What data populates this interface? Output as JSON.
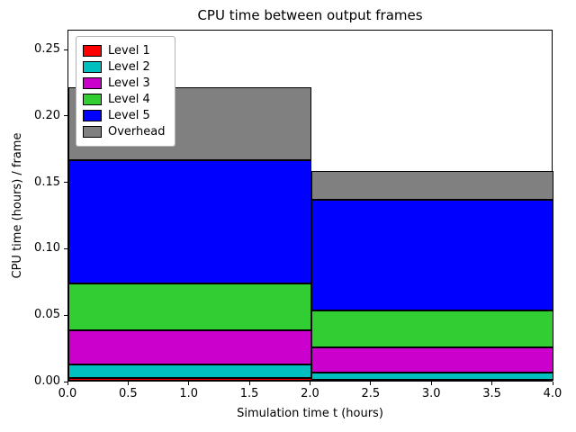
{
  "chart_data": {
    "type": "bar",
    "stacked": true,
    "title": "CPU time between output frames",
    "xlabel": "Simulation time t (hours)",
    "ylabel": "CPU time (hours) / frame",
    "xlim": [
      0,
      4
    ],
    "ylim": [
      0,
      0.265
    ],
    "xtick_labels": [
      "0.0",
      "0.5",
      "1.0",
      "1.5",
      "2.0",
      "2.5",
      "3.0",
      "3.5",
      "4.0"
    ],
    "ytick_labels": [
      "0.00",
      "0.05",
      "0.10",
      "0.15",
      "0.20",
      "0.25"
    ],
    "grid": false,
    "bar_edge_color": "#000000",
    "bars": [
      {
        "x_start": 0,
        "x_end": 2
      },
      {
        "x_start": 2,
        "x_end": 4
      }
    ],
    "series": [
      {
        "name": "Level 1",
        "color": "#ff0000",
        "values": [
          0.002,
          0.001
        ]
      },
      {
        "name": "Level 2",
        "color": "#00bfbf",
        "values": [
          0.01,
          0.005
        ]
      },
      {
        "name": "Level 3",
        "color": "#cc00cc",
        "values": [
          0.026,
          0.019
        ]
      },
      {
        "name": "Level 4",
        "color": "#32cd32",
        "values": [
          0.035,
          0.028
        ]
      },
      {
        "name": "Level 5",
        "color": "#0000ff",
        "values": [
          0.093,
          0.083
        ]
      },
      {
        "name": "Overhead",
        "color": "#808080",
        "values": [
          0.055,
          0.022
        ]
      }
    ],
    "stack_totals": [
      0.221,
      0.158
    ],
    "legend": {
      "position": "upper left",
      "entries": [
        "Level 1",
        "Level 2",
        "Level 3",
        "Level 4",
        "Level 5",
        "Overhead"
      ]
    }
  }
}
